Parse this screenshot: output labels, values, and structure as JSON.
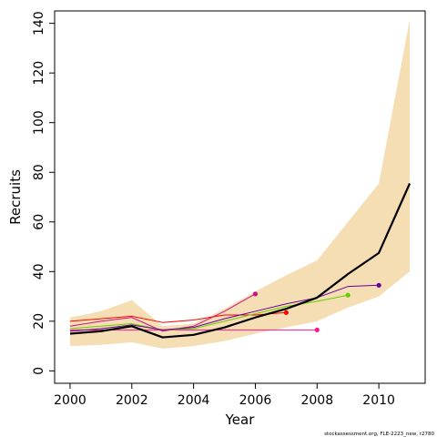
{
  "chart_data": {
    "type": "line",
    "xlabel": "Year",
    "ylabel": "Recruits",
    "xlim": [
      1999.5,
      2011.5
    ],
    "ylim": [
      -5,
      145
    ],
    "x_ticks": [
      2000,
      2002,
      2004,
      2006,
      2008,
      2010
    ],
    "y_ticks": [
      0,
      20,
      40,
      60,
      80,
      100,
      120,
      140
    ],
    "grid": false,
    "legend": "none",
    "footnote": "stockassessment.org, FLE-2223_new, r2780",
    "band": {
      "color": "#f5deb3",
      "x": [
        2000,
        2001,
        2002,
        2003,
        2004,
        2005,
        2006,
        2007,
        2008,
        2009,
        2010,
        2011
      ],
      "lower": [
        10,
        10.5,
        11.5,
        9,
        10,
        12,
        15,
        17.5,
        20,
        25.5,
        30,
        40
      ],
      "upper": [
        21.5,
        24,
        28.5,
        18,
        19,
        25,
        32,
        38.5,
        44.5,
        60,
        75.5,
        141.5
      ]
    },
    "series": [
      {
        "color": "#000000",
        "width": 2.2,
        "marker": false,
        "x": [
          2000,
          2001,
          2002,
          2003,
          2004,
          2005,
          2006,
          2007,
          2008,
          2009,
          2010,
          2011
        ],
        "values": [
          15,
          16,
          18,
          13.5,
          14.5,
          17.5,
          21.5,
          25,
          29.5,
          39,
          47.5,
          75.5
        ]
      },
      {
        "color": "#ff1493",
        "width": 1,
        "marker": true,
        "x": [
          2000,
          2001,
          2002,
          2003,
          2004,
          2005,
          2006,
          2007,
          2008
        ],
        "values": [
          16.5,
          16.5,
          16.5,
          16.5,
          16.5,
          16.5,
          16.5,
          16.5,
          16.5
        ]
      },
      {
        "color": "#ff0000",
        "width": 1,
        "marker": true,
        "x": [
          2000,
          2001,
          2002,
          2003,
          2004,
          2005,
          2006,
          2007
        ],
        "values": [
          20,
          21,
          22,
          19.5,
          20.5,
          22.5,
          22.5,
          23.5
        ]
      },
      {
        "color": "#c71585",
        "width": 1,
        "marker": true,
        "x": [
          2000,
          2001,
          2002,
          2003,
          2004,
          2005,
          2006
        ],
        "values": [
          18,
          20,
          21.5,
          16,
          18,
          24,
          31
        ]
      },
      {
        "color": "#66cc00",
        "width": 1,
        "marker": true,
        "x": [
          2000,
          2001,
          2002,
          2003,
          2004,
          2005,
          2006,
          2007,
          2008,
          2009
        ],
        "values": [
          17,
          18,
          19,
          16.5,
          17,
          20,
          23,
          26,
          28,
          30.5
        ]
      },
      {
        "color": "#660099",
        "width": 1,
        "marker": true,
        "x": [
          2000,
          2001,
          2002,
          2003,
          2004,
          2005,
          2006,
          2007,
          2008,
          2009,
          2010
        ],
        "values": [
          16,
          17,
          18.5,
          16.5,
          17.5,
          21,
          24,
          27,
          29.5,
          34,
          34.5
        ]
      }
    ]
  }
}
